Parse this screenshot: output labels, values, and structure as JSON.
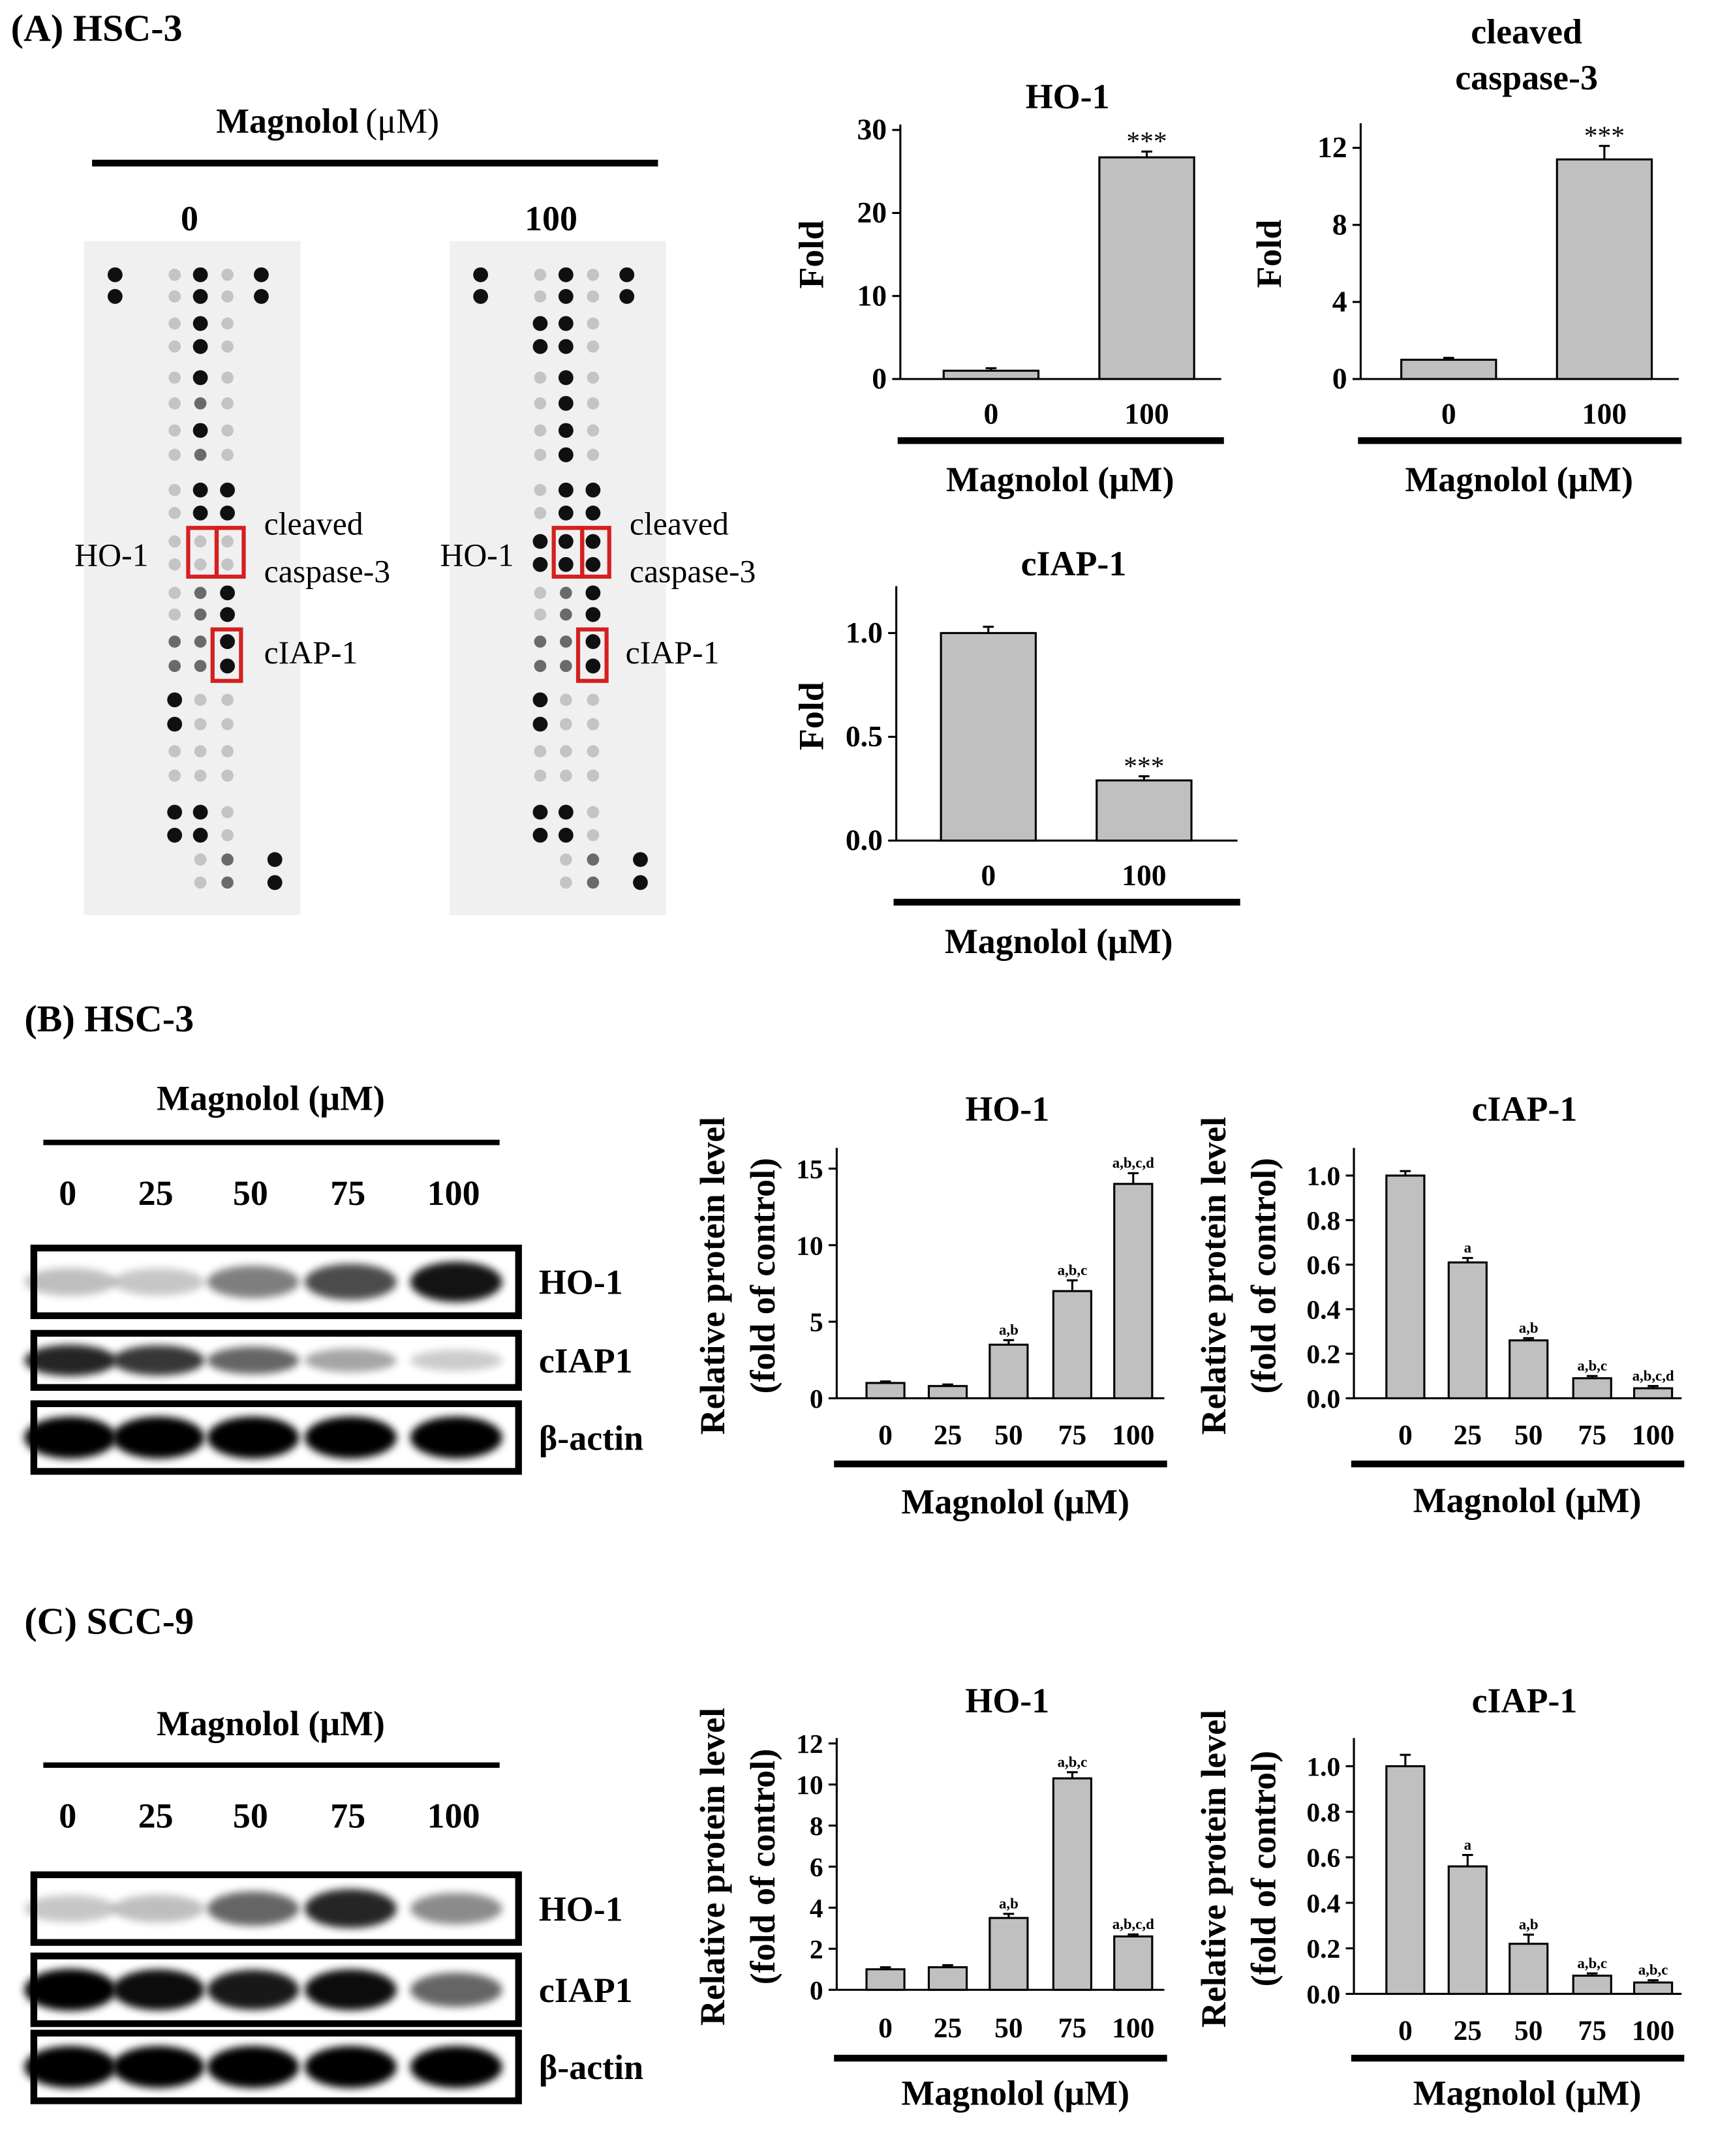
{
  "panels": {
    "A": {
      "label": "(A) HSC-3",
      "condition": "Magnolol",
      "unit": "(μM)",
      "doses": [
        "0",
        "100"
      ]
    },
    "B": {
      "label": "(B) HSC-3",
      "condition": "Magnolol (μM)",
      "doses": [
        "0",
        "25",
        "50",
        "75",
        "100"
      ],
      "bands": [
        "HO-1",
        "cIAP1",
        "β-actin"
      ]
    },
    "C": {
      "label": "(C) SCC-9",
      "condition": "Magnolol (μM)",
      "doses": [
        "0",
        "25",
        "50",
        "75",
        "100"
      ],
      "bands": [
        "HO-1",
        "cIAP1",
        "β-actin"
      ]
    }
  },
  "array_labels": {
    "ho1": "HO-1",
    "cleaved": "cleaved",
    "caspase": "caspase-3",
    "ciap": "cIAP-1"
  },
  "colors": {
    "bar": "#c0c0c0",
    "highlight_box": "#d42020"
  },
  "chart_data": [
    {
      "id": "A_HO1",
      "type": "bar",
      "title": "HO-1",
      "xlabel": "Magnolol (μM)",
      "ylabel": "Fold",
      "categories": [
        "0",
        "100"
      ],
      "values": [
        1.0,
        26.7
      ],
      "errors": [
        0.3,
        0.7
      ],
      "ylim": [
        0,
        30
      ],
      "yticks": [
        0,
        10,
        20,
        30
      ],
      "annotations": [
        "",
        "***"
      ]
    },
    {
      "id": "A_casp",
      "type": "bar",
      "title": "cleaved caspase-3",
      "xlabel": "Magnolol (μM)",
      "ylabel": "Fold",
      "categories": [
        "0",
        "100"
      ],
      "values": [
        1.0,
        11.4
      ],
      "errors": [
        0.1,
        0.7
      ],
      "ylim": [
        0,
        13
      ],
      "yticks": [
        0,
        4,
        8,
        12
      ],
      "annotations": [
        "",
        "***"
      ]
    },
    {
      "id": "A_cIAP",
      "type": "bar",
      "title": "cIAP-1",
      "xlabel": "Magnolol (μM)",
      "ylabel": "Fold",
      "categories": [
        "0",
        "100"
      ],
      "values": [
        1.0,
        0.29
      ],
      "errors": [
        0.03,
        0.02
      ],
      "ylim": [
        0,
        1.2
      ],
      "yticks": [
        "0.0",
        "0.5",
        "1.0"
      ],
      "annotations": [
        "",
        "***"
      ]
    },
    {
      "id": "B_HO1",
      "type": "bar",
      "title": "HO-1",
      "xlabel": "Magnolol (μM)",
      "ylabel": "Relative protein level (fold of control)",
      "categories": [
        "0",
        "25",
        "50",
        "75",
        "100"
      ],
      "values": [
        1.0,
        0.8,
        3.5,
        7.0,
        14.0
      ],
      "errors": [
        0.1,
        0.1,
        0.3,
        0.7,
        0.7
      ],
      "ylim": [
        0,
        16
      ],
      "yticks": [
        0,
        5,
        10,
        15
      ],
      "annotations": [
        "",
        "",
        "a,b",
        "a,b,c",
        "a,b,c,d"
      ]
    },
    {
      "id": "B_cIAP",
      "type": "bar",
      "title": "cIAP-1",
      "xlabel": "Magnolol (μM)",
      "ylabel": "Relative protein level (fold of control)",
      "categories": [
        "0",
        "25",
        "50",
        "75",
        "100"
      ],
      "values": [
        1.0,
        0.61,
        0.26,
        0.09,
        0.045
      ],
      "errors": [
        0.02,
        0.02,
        0.01,
        0.01,
        0.01
      ],
      "ylim": [
        0,
        1.1
      ],
      "yticks": [
        "0.0",
        "0.2",
        "0.4",
        "0.6",
        "0.8",
        "1.0"
      ],
      "annotations": [
        "",
        "a",
        "a,b",
        "a,b,c",
        "a,b,c,d"
      ]
    },
    {
      "id": "C_HO1",
      "type": "bar",
      "title": "HO-1",
      "xlabel": "Magnolol (μM)",
      "ylabel": "Relative protein level (fold of control)",
      "categories": [
        "0",
        "25",
        "50",
        "75",
        "100"
      ],
      "values": [
        1.0,
        1.1,
        3.5,
        10.3,
        2.6
      ],
      "errors": [
        0.1,
        0.1,
        0.2,
        0.3,
        0.1
      ],
      "ylim": [
        0,
        12
      ],
      "yticks": [
        0,
        2,
        4,
        6,
        8,
        10,
        12
      ],
      "annotations": [
        "",
        "",
        "a,b",
        "a,b,c",
        "a,b,c,d"
      ]
    },
    {
      "id": "C_cIAP",
      "type": "bar",
      "title": "cIAP-1",
      "xlabel": "Magnolol (μM)",
      "ylabel": "Relative protein level (fold of control)",
      "categories": [
        "0",
        "25",
        "50",
        "75",
        "100"
      ],
      "values": [
        1.0,
        0.56,
        0.22,
        0.08,
        0.05
      ],
      "errors": [
        0.05,
        0.05,
        0.04,
        0.01,
        0.01
      ],
      "ylim": [
        0,
        1.1
      ],
      "yticks": [
        "0.0",
        "0.2",
        "0.4",
        "0.6",
        "0.8",
        "1.0"
      ],
      "annotations": [
        "",
        "a",
        "a,b",
        "a,b,c",
        "a,b,c"
      ]
    }
  ]
}
